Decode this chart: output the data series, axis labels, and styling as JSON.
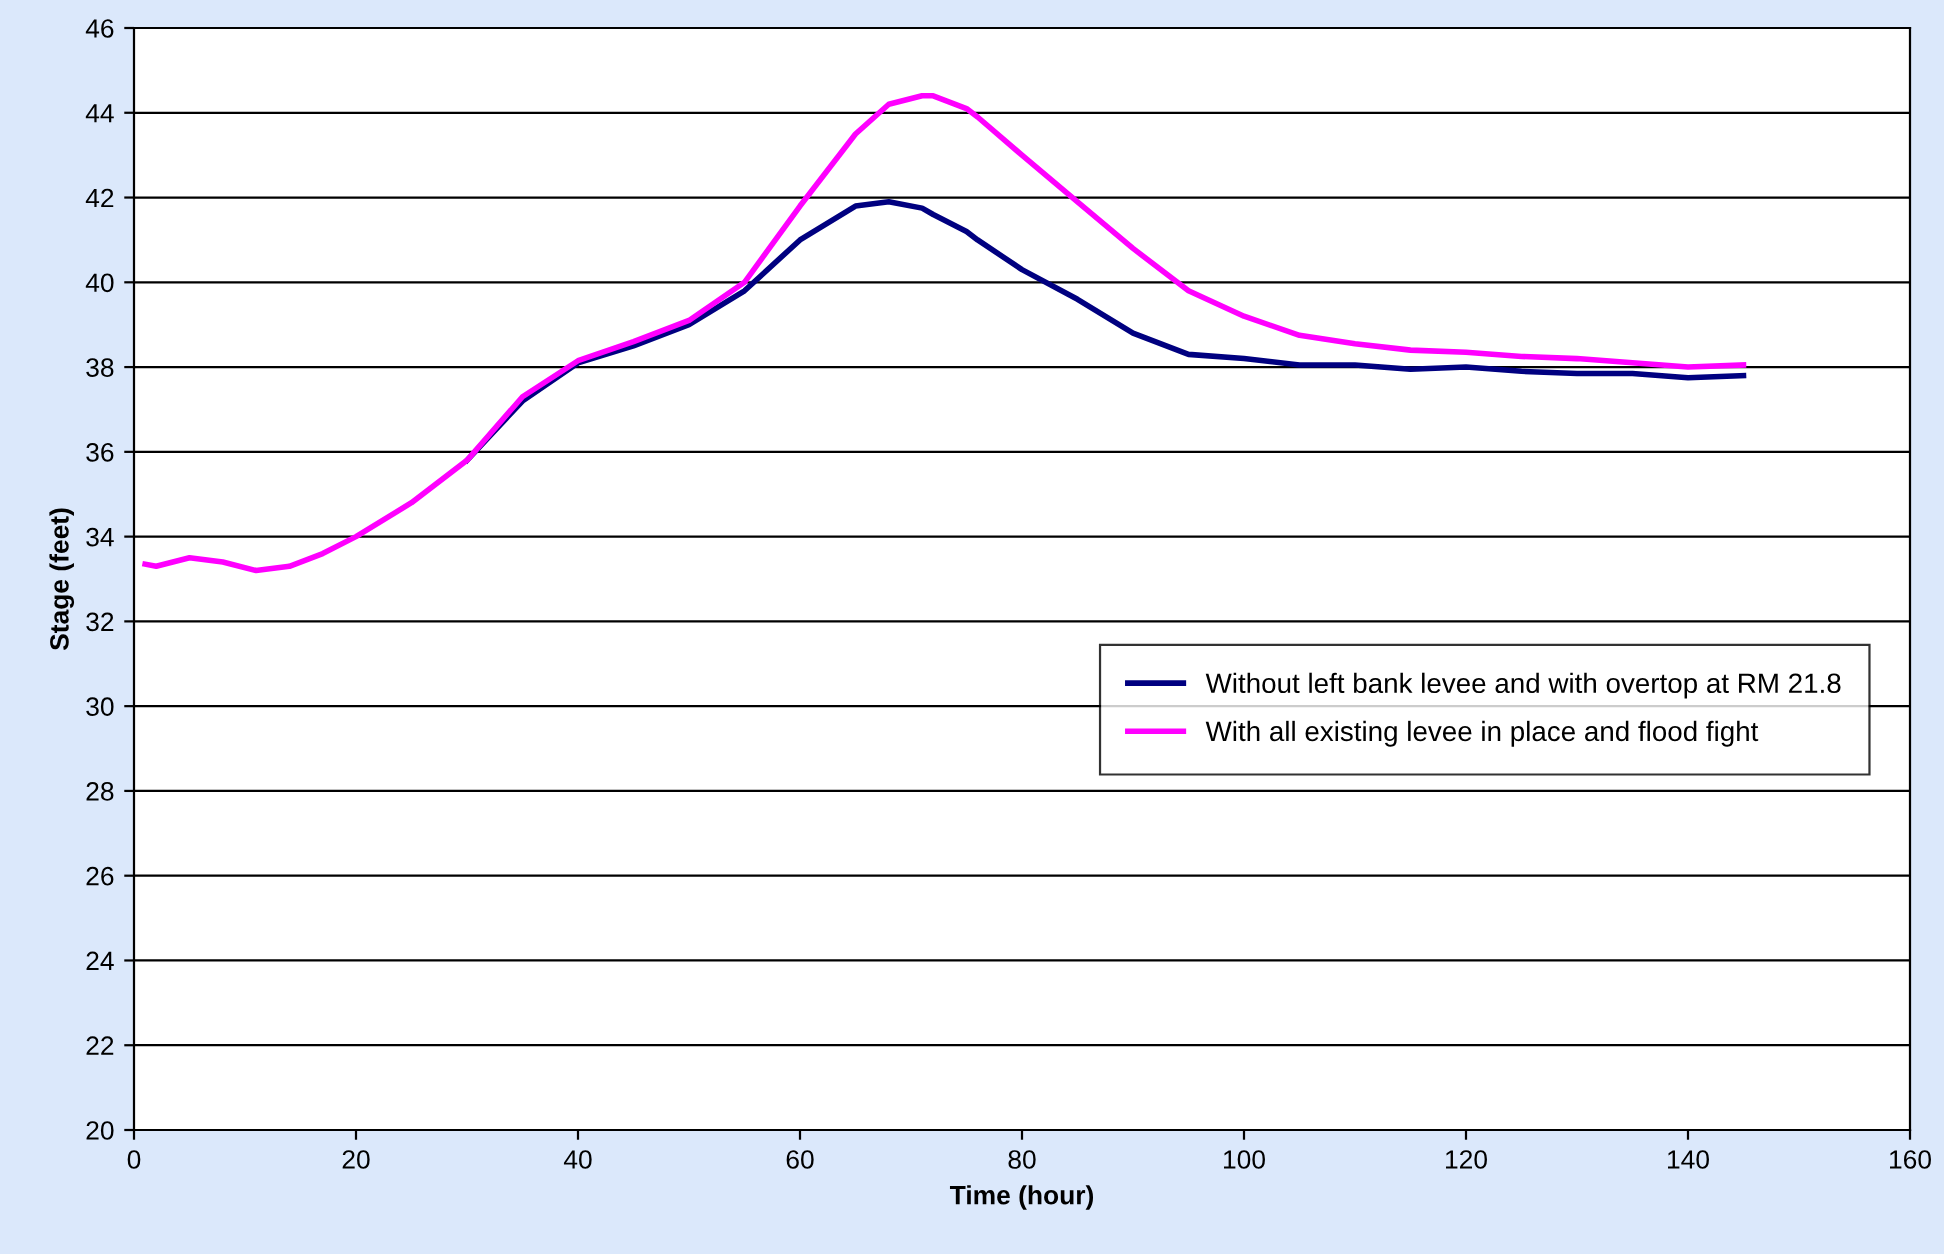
{
  "chart_data": {
    "type": "line",
    "xlabel": "Time (hour)",
    "ylabel": "Stage (feet)",
    "x": [
      1,
      2,
      5,
      8,
      11,
      14,
      17,
      20,
      25,
      30,
      35,
      40,
      45,
      50,
      55,
      60,
      65,
      68,
      71,
      72,
      75,
      76,
      80,
      85,
      90,
      95,
      100,
      105,
      110,
      115,
      120,
      125,
      130,
      135,
      140,
      145
    ],
    "series": [
      {
        "name": "Without left bank levee and with overtop at RM 21.8",
        "color": "#000080",
        "values": [
          null,
          null,
          null,
          null,
          null,
          null,
          null,
          null,
          null,
          35.8,
          37.2,
          38.1,
          38.5,
          39.0,
          39.8,
          41.0,
          41.8,
          41.9,
          41.75,
          41.6,
          41.2,
          41.0,
          40.3,
          39.6,
          38.8,
          38.3,
          38.2,
          38.05,
          38.05,
          37.95,
          38.0,
          37.9,
          37.85,
          37.85,
          37.75,
          37.8
        ]
      },
      {
        "name": "With all existing levee in place and flood fight",
        "color": "#ff00ff",
        "values": [
          33.35,
          33.3,
          33.5,
          33.4,
          33.2,
          33.3,
          33.6,
          34.0,
          34.8,
          35.8,
          37.3,
          38.15,
          38.6,
          39.1,
          40.0,
          41.8,
          43.5,
          44.2,
          44.4,
          44.4,
          44.1,
          43.9,
          43.0,
          41.9,
          40.8,
          39.8,
          39.2,
          38.75,
          38.55,
          38.4,
          38.35,
          38.25,
          38.2,
          38.1,
          38.0,
          38.05
        ]
      }
    ],
    "xlim": [
      0,
      160
    ],
    "xticks": [
      0,
      20,
      40,
      60,
      80,
      100,
      120,
      140,
      160
    ],
    "ylim": [
      20,
      46
    ],
    "yticks": [
      20,
      22,
      24,
      26,
      28,
      30,
      32,
      34,
      36,
      38,
      40,
      42,
      44,
      46
    ],
    "grid": "y",
    "legend": "bottom right",
    "marker": "none",
    "line_style": "solid"
  }
}
